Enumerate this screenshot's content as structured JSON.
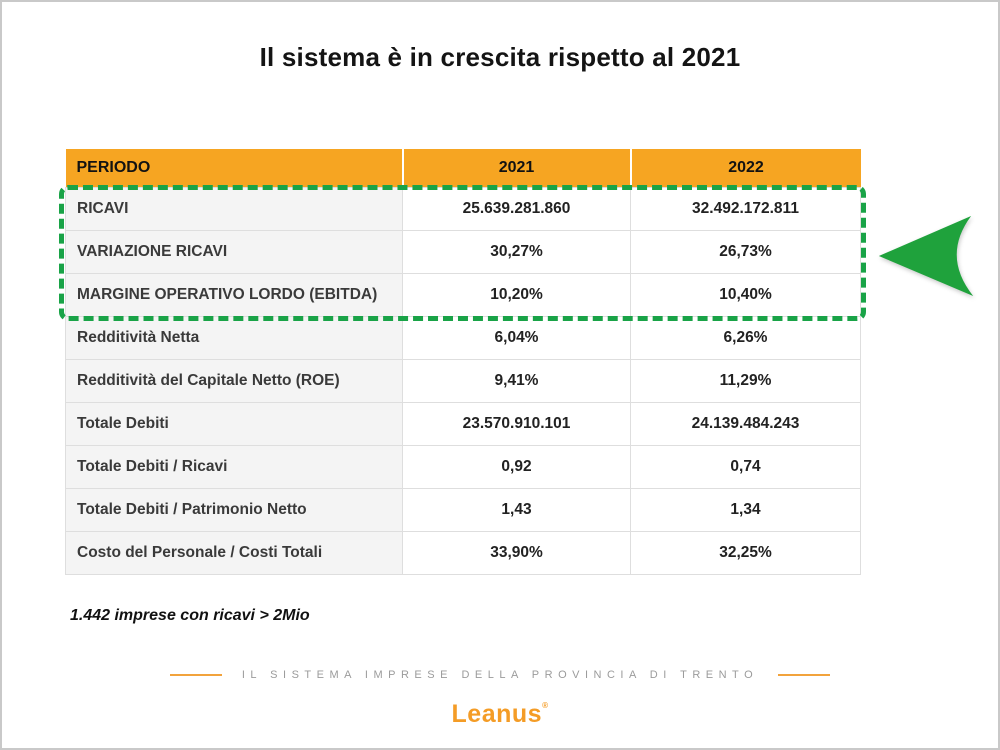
{
  "slide": {
    "title": "Il sistema è in crescita rispetto al 2021",
    "footnote": "1.442 imprese con ricavi > 2Mio",
    "footer_text": "IL SISTEMA IMPRESE DELLA PROVINCIA DI TRENTO",
    "logo_text": "Leanus",
    "logo_mark": "®"
  },
  "table": {
    "headers": [
      "PERIODO",
      "2021",
      "2022"
    ],
    "rows": [
      {
        "label": "RICAVI",
        "y2021": "25.639.281.860",
        "y2022": "32.492.172.811",
        "highlighted": true
      },
      {
        "label": "VARIAZIONE RICAVI",
        "y2021": "30,27%",
        "y2022": "26,73%",
        "highlighted": true
      },
      {
        "label": "MARGINE OPERATIVO LORDO (EBITDA)",
        "y2021": "10,20%",
        "y2022": "10,40%",
        "highlighted": true
      },
      {
        "label": "Redditività Netta",
        "y2021": "6,04%",
        "y2022": "6,26%",
        "highlighted": false
      },
      {
        "label": "Redditività del Capitale Netto (ROE)",
        "y2021": "9,41%",
        "y2022": "11,29%",
        "highlighted": false
      },
      {
        "label": "Totale Debiti",
        "y2021": "23.570.910.101",
        "y2022": "24.139.484.243",
        "highlighted": false
      },
      {
        "label": "Totale Debiti / Ricavi",
        "y2021": "0,92",
        "y2022": "0,74",
        "highlighted": false
      },
      {
        "label": "Totale Debiti / Patrimonio Netto",
        "y2021": "1,43",
        "y2022": "1,34",
        "highlighted": false
      },
      {
        "label": "Costo del Personale / Costi Totali",
        "y2021": "33,90%",
        "y2022": "32,25%",
        "highlighted": false
      }
    ]
  },
  "colors": {
    "header_orange": "#F6A522",
    "accent_orange": "#F2A33C",
    "logo_orange": "#F49C26",
    "highlight_green": "#19A347",
    "arrow_green": "#1FA23C",
    "label_cell_bg": "#F4F4F4",
    "grid_line": "#DEDEDE",
    "footer_text_gray": "#9B9B9B"
  },
  "icons": {
    "arrow": "left-arrow-icon"
  }
}
